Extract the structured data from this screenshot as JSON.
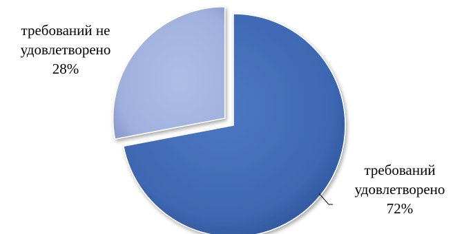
{
  "chart_data": {
    "type": "pie",
    "title": "",
    "slices": [
      {
        "label_lines": [
          "требований",
          "удовлетворено"
        ],
        "percent_label": "72%",
        "value": 72,
        "color": "#3E68B3",
        "exploded": false
      },
      {
        "label_lines": [
          "требований не",
          "удовлетворено"
        ],
        "percent_label": "28%",
        "value": 28,
        "color": "#9FB0DE",
        "exploded": true
      }
    ],
    "start_angle_deg": 0,
    "direction": "clockwise",
    "legend": "none",
    "style": "3d-bevel"
  }
}
